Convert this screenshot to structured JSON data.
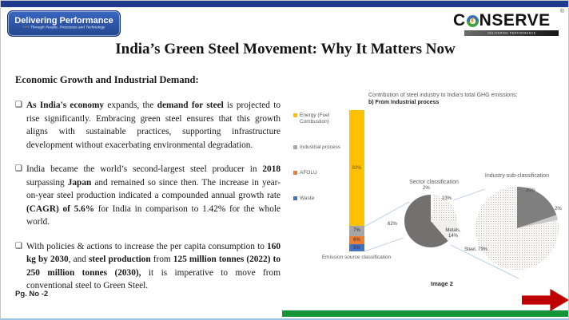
{
  "header": {
    "badge": {
      "line1": "Delivering Performance",
      "prefix": "+++",
      "line2": "Through People, Processes and Technology"
    },
    "logo": {
      "part1": "C",
      "part2": "NSERVE",
      "registered": "®",
      "tagline": "DELIVERING PERFORMANCE"
    },
    "title": "India’s Green Steel Movement: Why It Matters Now"
  },
  "content": {
    "heading": "Economic Growth and Industrial Demand:",
    "bullets": [
      {
        "marker": "❑",
        "segments": [
          {
            "t": "As India's economy",
            "b": 1
          },
          {
            "t": " expands, the ",
            "b": 0
          },
          {
            "t": "demand for steel",
            "b": 1
          },
          {
            "t": " is projected to rise significantly. Embracing green steel ensures that this growth aligns with sustainable practices, supporting infrastructure development without exacerbating environmental degradation.",
            "b": 0
          }
        ]
      },
      {
        "marker": "❑",
        "segments": [
          {
            "t": "India became the world’s second-largest steel producer in ",
            "b": 0
          },
          {
            "t": "2018",
            "b": 1
          },
          {
            "t": " surpassing ",
            "b": 0
          },
          {
            "t": "Japan",
            "b": 1
          },
          {
            "t": " and remained so since then. The increase in year-on-year steel production indicated a compounded annual growth rate ",
            "b": 0
          },
          {
            "t": "(CAGR) of 5.6%",
            "b": 1
          },
          {
            "t": " for India in comparison to 1.42% for the whole world.",
            "b": 0
          }
        ]
      },
      {
        "marker": "❑",
        "segments": [
          {
            "t": "With policies & actions to increase the per capita consumption to ",
            "b": 0
          },
          {
            "t": "160 kg by 2030",
            "b": 1
          },
          {
            "t": ", and ",
            "b": 0
          },
          {
            "t": "steel production",
            "b": 1
          },
          {
            "t": " from ",
            "b": 0
          },
          {
            "t": "125 million tonnes (2022) to 250 million tonnes (2030),",
            "b": 1
          },
          {
            "t": " it is imperative to move from conventional steel to Green Steel.",
            "b": 0
          }
        ]
      }
    ]
  },
  "footer": {
    "page": "Pg. No -2",
    "image_caption": "Image 2"
  },
  "accent_colors": {
    "top_bar": "#203a90",
    "green_bar": "#159539",
    "arrow_red": "#c00000"
  },
  "chart_data": [
    {
      "type": "bar",
      "title": "Contribution of steel industry to India's total GHG emissions:",
      "subtitle": "b) From Industrial process",
      "xlabel": "Emission source classification",
      "categories": [
        "Energy (Fuel Combustion)",
        "Industrial process",
        "AFOLU",
        "Waste"
      ],
      "values": [
        82,
        7,
        6,
        5
      ],
      "labels": [
        "82%",
        "7%",
        "6%",
        "5%"
      ],
      "colors": [
        "#FFC000",
        "#A6A6A6",
        "#ED7D31",
        "#4472C4"
      ],
      "legend_position": "left",
      "ylim": [
        0,
        100
      ]
    },
    {
      "type": "pie",
      "title": "Sector classification",
      "slices": [
        {
          "label": "2%",
          "value": 2,
          "color": "#ffffff"
        },
        {
          "label": "23%",
          "value": 23,
          "color": "#d9d9d9",
          "pattern": "dots"
        },
        {
          "label": "Metals, 14%",
          "value": 14,
          "color": "#f1efeb",
          "pattern": "crosshatch"
        },
        {
          "label": "62%",
          "value": 62,
          "color": "#737070"
        }
      ]
    },
    {
      "type": "pie",
      "title": "Industry sub-classification",
      "slices": [
        {
          "label": "20%",
          "value": 20,
          "color": "#7f7f7f"
        },
        {
          "label": "2%",
          "value": 2,
          "color": "#c8c8c8"
        },
        {
          "label": "Steel, 79%",
          "value": 79,
          "color": "#e9e9e9",
          "pattern": "dots"
        }
      ]
    }
  ]
}
